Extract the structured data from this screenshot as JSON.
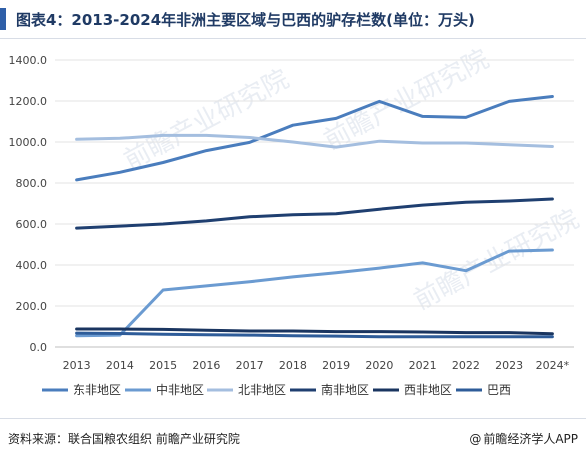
{
  "header": {
    "title": "图表4：2013-2024年非洲主要区域与巴西的驴存栏数(单位：万头)"
  },
  "footer": {
    "source": "资料来源：联合国粮农组织 前瞻产业研究院",
    "brand_icon": "@",
    "brand": "前瞻经济学人APP"
  },
  "watermark": "前瞻产业研究院",
  "chart_data": {
    "type": "line",
    "categories": [
      "2013",
      "2014",
      "2015",
      "2016",
      "2017",
      "2018",
      "2019",
      "2020",
      "2021",
      "2022",
      "2023",
      "2024*"
    ],
    "ylim": [
      0,
      1400
    ],
    "yticks": [
      "0.0",
      "200.0",
      "400.0",
      "600.0",
      "800.0",
      "1000.0",
      "1200.0",
      "1400.0"
    ],
    "grid": true,
    "legend_position": "bottom",
    "series": [
      {
        "name": "东非地区",
        "color": "#4a7dbd",
        "values": [
          815,
          852,
          900,
          958,
          998,
          1082,
          1115,
          1198,
          1125,
          1120,
          1198,
          1222
        ]
      },
      {
        "name": "中非地区",
        "color": "#6b9bd1",
        "values": [
          55,
          58,
          278,
          298,
          318,
          342,
          362,
          385,
          410,
          372,
          468,
          473
        ]
      },
      {
        "name": "北非地区",
        "color": "#a4bedf",
        "values": [
          1013,
          1018,
          1032,
          1032,
          1022,
          1000,
          975,
          1004,
          995,
          995,
          987,
          978
        ]
      },
      {
        "name": "南非地区",
        "color": "#1f3f70",
        "values": [
          580,
          590,
          600,
          615,
          635,
          645,
          650,
          672,
          692,
          706,
          712,
          722
        ]
      },
      {
        "name": "西非地区",
        "color": "#1a3560",
        "values": [
          88,
          88,
          86,
          82,
          78,
          78,
          75,
          75,
          73,
          70,
          70,
          65
        ]
      },
      {
        "name": "巴西",
        "color": "#2e5c99",
        "values": [
          68,
          66,
          62,
          60,
          58,
          55,
          53,
          50,
          50,
          50,
          50,
          50
        ]
      }
    ]
  }
}
